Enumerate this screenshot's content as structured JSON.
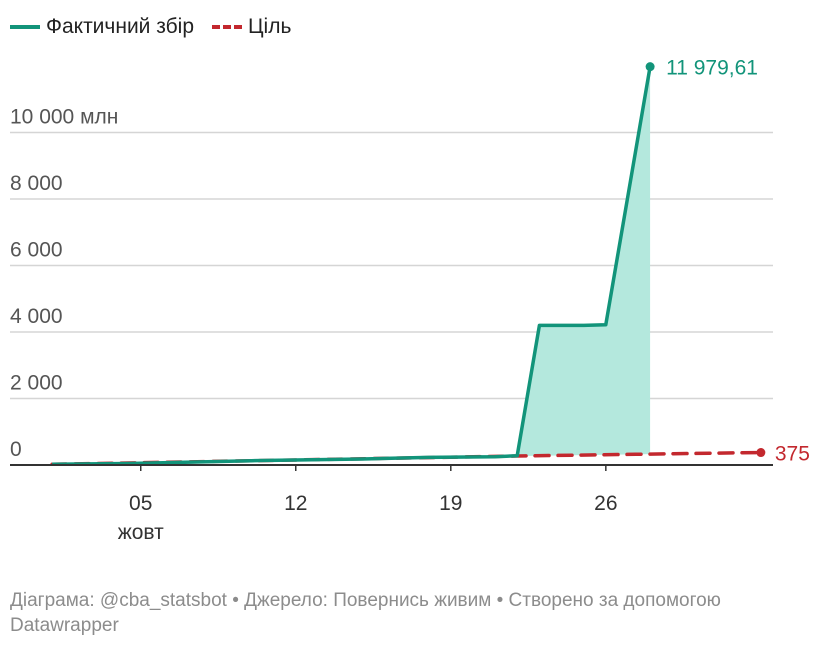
{
  "legend": {
    "actual_label": "Фактичний збір",
    "target_label": "Ціль"
  },
  "colors": {
    "actual": "#12947a",
    "actual_fill": "#b4e8dd",
    "target": "#c3282e",
    "grid": "#d5d5d5",
    "axis": "#333333"
  },
  "chart_data": {
    "type": "area",
    "x_unit": "date",
    "y_unit": "млн",
    "ylim": [
      0,
      12000
    ],
    "y_ticks": [
      {
        "value": 0,
        "label": "0"
      },
      {
        "value": 2000,
        "label": "2 000"
      },
      {
        "value": 4000,
        "label": "4 000"
      },
      {
        "value": 6000,
        "label": "6 000"
      },
      {
        "value": 8000,
        "label": "8 000"
      },
      {
        "value": 10000,
        "label": "10 000 млн"
      }
    ],
    "x_ticks": [
      {
        "date": "2022-10-05",
        "label": "05",
        "sublabel": "жовт"
      },
      {
        "date": "2022-10-12",
        "label": "12",
        "sublabel": ""
      },
      {
        "date": "2022-10-19",
        "label": "19",
        "sublabel": ""
      },
      {
        "date": "2022-10-26",
        "label": "26",
        "sublabel": ""
      }
    ],
    "xlim": [
      "2022-09-30",
      "2022-11-03"
    ],
    "series": [
      {
        "name": "Фактичний збір",
        "style": "solid-area",
        "end_label": "11 979,61",
        "points": [
          {
            "date": "2022-10-01",
            "value": 20
          },
          {
            "date": "2022-10-05",
            "value": 50
          },
          {
            "date": "2022-10-10",
            "value": 130
          },
          {
            "date": "2022-10-15",
            "value": 180
          },
          {
            "date": "2022-10-18",
            "value": 230
          },
          {
            "date": "2022-10-21",
            "value": 250
          },
          {
            "date": "2022-10-22",
            "value": 280
          },
          {
            "date": "2022-10-23",
            "value": 4200
          },
          {
            "date": "2022-10-25",
            "value": 4200
          },
          {
            "date": "2022-10-26",
            "value": 4220
          },
          {
            "date": "2022-10-28",
            "value": 11979.61
          }
        ]
      },
      {
        "name": "Ціль",
        "style": "dashed",
        "end_label": "375",
        "points": [
          {
            "date": "2022-10-01",
            "value": 20
          },
          {
            "date": "2022-10-22",
            "value": 270
          },
          {
            "date": "2022-11-02",
            "value": 375
          }
        ]
      }
    ]
  },
  "footer": {
    "text": "Діаграма: @cba_statsbot • Джерело: Повернись живим • Створено за допомогою Datawrapper"
  }
}
